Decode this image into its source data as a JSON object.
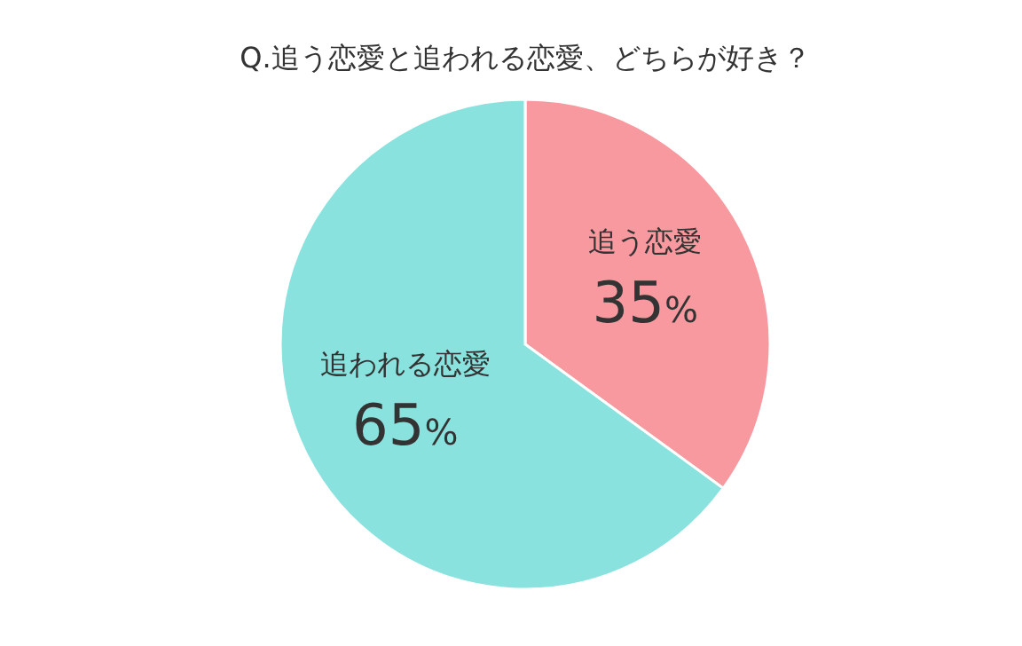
{
  "chart_data": {
    "type": "pie",
    "title": "Q.追う恋愛と追われる恋愛、どちらが好き？",
    "categories": [
      "追う恋愛",
      "追われる恋愛"
    ],
    "values": [
      35,
      65
    ],
    "colors": [
      "#f7999e",
      "#8ae2de"
    ],
    "value_labels": [
      "35%",
      "65%"
    ]
  }
}
